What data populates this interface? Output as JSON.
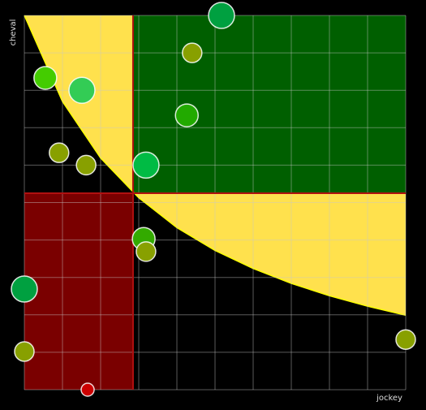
{
  "chart_data": {
    "type": "bubble",
    "xlabel": "jockey",
    "ylabel": "cheval",
    "xlim": [
      0,
      10
    ],
    "ylim": [
      0,
      10
    ],
    "xticks": [
      0,
      1,
      2,
      3,
      4,
      5,
      6,
      7,
      8,
      9,
      10
    ],
    "yticks": [
      0,
      1,
      2,
      3,
      4,
      5,
      6,
      7,
      8,
      9,
      10
    ],
    "tick_labels": false,
    "grid": true,
    "background": "#000000",
    "split": {
      "x": 2.85,
      "y": 5.25,
      "color": "#b01010"
    },
    "regions": {
      "top_right": "#005f00",
      "bottom_left": "#7a0000",
      "frontier": "#ffe14d"
    },
    "boundary": {
      "x": [
        0,
        1,
        2,
        3,
        4,
        5,
        6,
        7,
        8,
        9,
        10
      ],
      "y": [
        10,
        7.7,
        6.19,
        5.13,
        4.33,
        3.72,
        3.24,
        2.84,
        2.51,
        2.23,
        1.99
      ]
    },
    "series": [
      {
        "x": [
          5.17,
          4.4,
          0.55,
          1.51,
          4.26,
          0.91,
          1.62,
          3.19,
          3.13,
          3.19,
          0,
          0,
          1.66,
          10
        ],
        "values": [
          10.0,
          9.0,
          8.33,
          8.0,
          7.33,
          6.33,
          6.0,
          6.0,
          4.03,
          3.69,
          2.69,
          1.02,
          0,
          1.34
        ],
        "sizes": [
          16,
          12,
          14,
          16,
          14,
          12,
          12,
          16,
          14,
          12,
          16,
          12,
          8,
          12
        ],
        "colors": [
          "#00a040",
          "#88a000",
          "#44cc00",
          "#33cc55",
          "#22aa00",
          "#88a000",
          "#88a000",
          "#00bb44",
          "#33aa00",
          "#88a000",
          "#00a040",
          "#88a000",
          "#cc0000",
          "#88a000"
        ]
      }
    ]
  }
}
